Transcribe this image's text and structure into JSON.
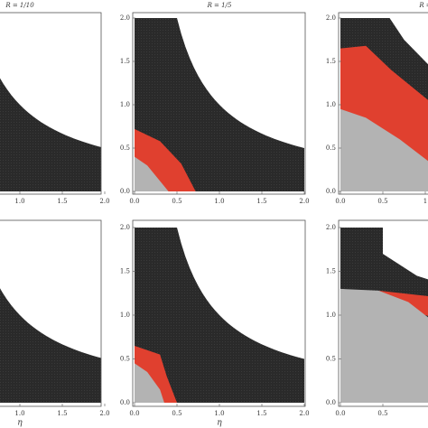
{
  "chart_data": [
    {
      "type": "region",
      "title": "R = 1/10",
      "xlim": [
        0,
        2
      ],
      "ylim": [
        0,
        2
      ],
      "xticks": [
        {
          "value": 1,
          "label": "1.0"
        },
        {
          "value": 1.5,
          "label": "1.5"
        },
        {
          "value": 2,
          "label": "2.0"
        }
      ]
    },
    {
      "type": "region",
      "title": "R = 1/5",
      "xlim": [
        0,
        2
      ],
      "ylim": [
        0,
        2
      ],
      "xticks": [
        {
          "value": 0,
          "label": "0.0"
        },
        {
          "value": 0.5,
          "label": "0.5"
        },
        {
          "value": 1,
          "label": "1.0"
        },
        {
          "value": 1.5,
          "label": "1.5"
        },
        {
          "value": 2,
          "label": "2.0"
        }
      ],
      "yticks": [
        {
          "value": 0,
          "label": "0.0"
        },
        {
          "value": 0.5,
          "label": "0.5"
        },
        {
          "value": 1,
          "label": "1.0"
        },
        {
          "value": 1.5,
          "label": "1.5"
        },
        {
          "value": 2,
          "label": "2.0"
        }
      ]
    },
    {
      "type": "region",
      "title": "R =",
      "xlim": [
        0,
        2
      ],
      "ylim": [
        0,
        2
      ],
      "xticks": [
        {
          "value": 0,
          "label": "0.0"
        },
        {
          "value": 0.5,
          "label": "0.5"
        },
        1
      ],
      "yticks": [
        {
          "value": 0,
          "label": "0.0"
        },
        {
          "value": 0.5,
          "label": "0.5"
        },
        {
          "value": 1,
          "label": "1.0"
        },
        {
          "value": 1.5,
          "label": "1.5"
        },
        {
          "value": 2,
          "label": "2.0"
        }
      ]
    },
    {
      "type": "region",
      "xlabel": "η",
      "xlim": [
        0,
        2
      ],
      "ylim": [
        0,
        2
      ],
      "xticks": [
        {
          "value": 1,
          "label": "1.0"
        },
        {
          "value": 1.5,
          "label": "1.5"
        },
        {
          "value": 2,
          "label": "2.0"
        }
      ]
    },
    {
      "type": "region",
      "xlabel": "η",
      "xlim": [
        0,
        2
      ],
      "ylim": [
        0,
        2
      ],
      "xticks": [
        {
          "value": 0,
          "label": "0.0"
        },
        {
          "value": 0.5,
          "label": "0.5"
        },
        {
          "value": 1,
          "label": "1.0"
        },
        {
          "value": 1.5,
          "label": "1.5"
        },
        {
          "value": 2,
          "label": "2.0"
        }
      ],
      "yticks": [
        {
          "value": 0,
          "label": "0.0"
        },
        {
          "value": 0.5,
          "label": "0.5"
        },
        {
          "value": 1,
          "label": "1.0"
        },
        {
          "value": 1.5,
          "label": "1.5"
        },
        {
          "value": 2,
          "label": "2.0"
        }
      ]
    },
    {
      "type": "region",
      "xlim": [
        0,
        2
      ],
      "ylim": [
        0,
        2
      ],
      "xticks": [
        {
          "value": 0,
          "label": "0.0"
        },
        {
          "value": 0.5,
          "label": "0.5"
        }
      ],
      "yticks": [
        {
          "value": 0,
          "label": "0.0"
        },
        {
          "value": 0.5,
          "label": "0.5"
        },
        {
          "value": 1,
          "label": "1.0"
        },
        {
          "value": 1.5,
          "label": "1.5"
        },
        {
          "value": 2,
          "label": "2.0"
        }
      ]
    }
  ]
}
